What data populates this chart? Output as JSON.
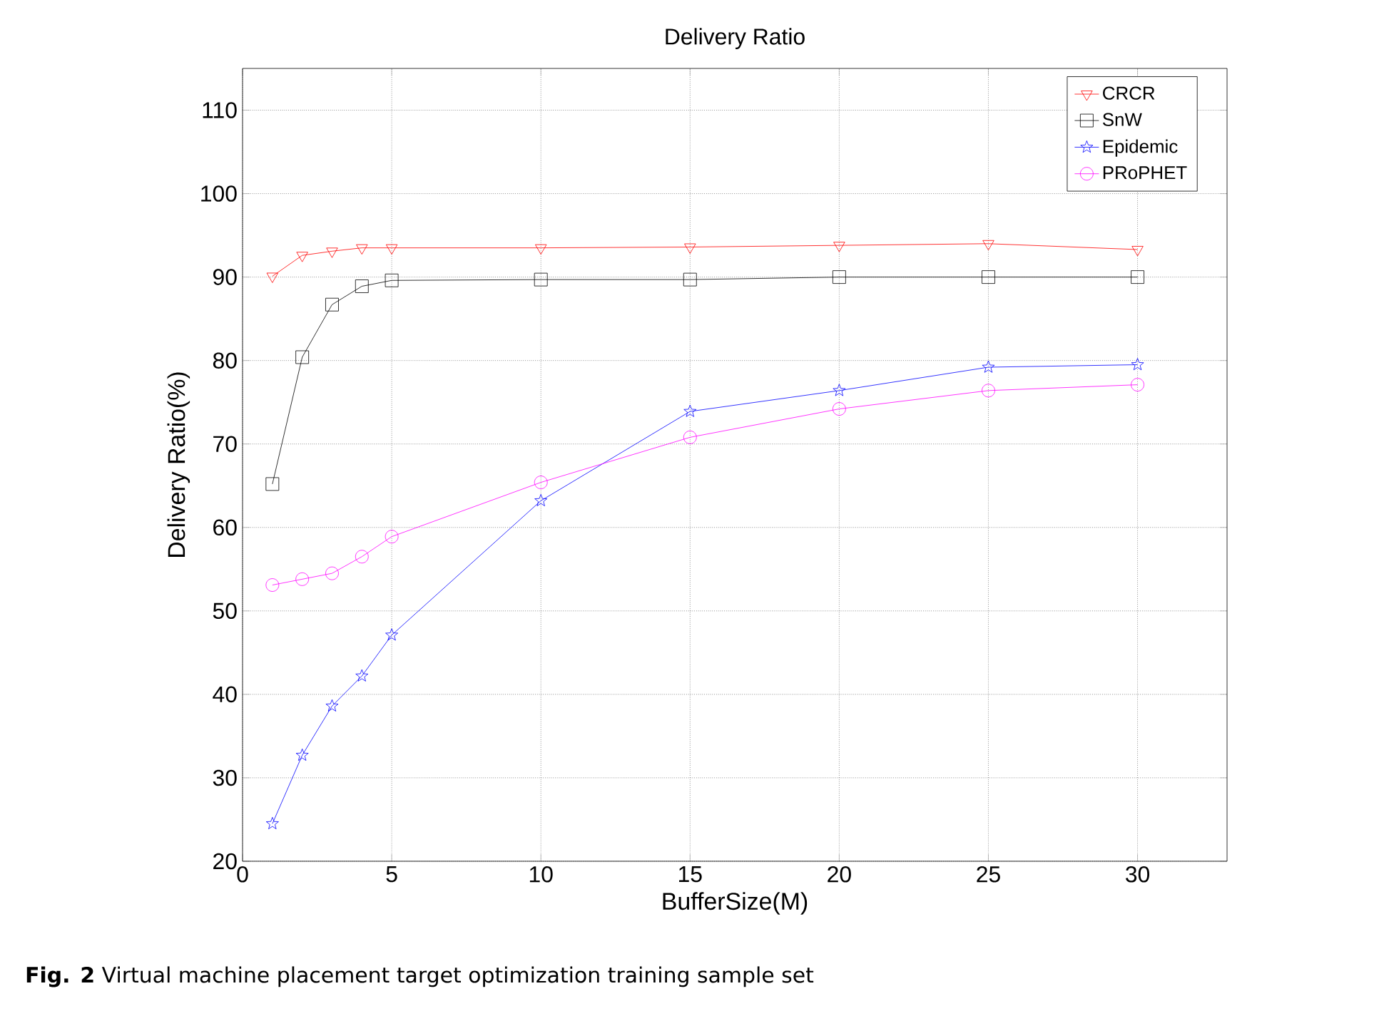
{
  "chart_data": {
    "type": "line",
    "title": "Delivery Ratio",
    "xlabel": "BufferSize(M)",
    "ylabel": "Delivery Ratio(%)",
    "x": [
      1,
      2,
      3,
      4,
      5,
      10,
      15,
      20,
      25,
      30
    ],
    "series": [
      {
        "name": "CRCR",
        "color": "#ff0000",
        "marker": "triangle",
        "values": [
          90.1,
          92.6,
          93.1,
          93.5,
          93.5,
          93.5,
          93.6,
          93.8,
          94.0,
          93.3
        ]
      },
      {
        "name": "SnW",
        "color": "#000000",
        "marker": "square",
        "values": [
          65.2,
          80.4,
          86.7,
          88.9,
          89.6,
          89.7,
          89.7,
          90.0,
          90.0,
          90.0
        ]
      },
      {
        "name": "Epidemic",
        "color": "#0000ff",
        "marker": "star",
        "values": [
          24.5,
          32.7,
          38.6,
          42.2,
          47.1,
          63.2,
          73.9,
          76.4,
          79.2,
          79.5
        ]
      },
      {
        "name": "PRoPHET",
        "color": "#ff00ff",
        "marker": "circle",
        "values": [
          53.1,
          53.8,
          54.5,
          56.5,
          58.9,
          65.4,
          70.8,
          74.2,
          76.4,
          77.1
        ]
      }
    ],
    "xlim": [
      0,
      33
    ],
    "ylim": [
      20,
      115
    ],
    "xticks": [
      0,
      5,
      10,
      15,
      20,
      25,
      30
    ],
    "yticks": [
      20,
      30,
      40,
      50,
      60,
      70,
      80,
      90,
      100,
      110
    ],
    "grid": true,
    "legend": "top right",
    "line_style": "solid",
    "annotations": [
      "**Fig. 2** Virtual machine placement target optimization training sample set"
    ]
  }
}
